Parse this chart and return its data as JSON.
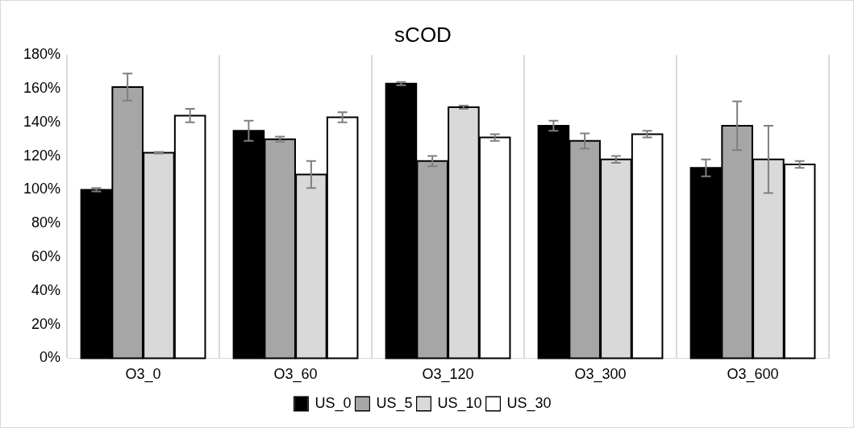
{
  "chart_data": {
    "type": "bar",
    "title": "sCOD",
    "categories": [
      "O3_0",
      "O3_60",
      "O3_120",
      "O3_300",
      "O3_600"
    ],
    "series": [
      {
        "name": "US_0",
        "color": "#000000",
        "values": [
          100,
          135,
          163,
          138,
          113
        ],
        "errors": [
          1,
          6,
          1,
          3,
          5
        ]
      },
      {
        "name": "US_5",
        "color": "#a6a6a6",
        "values": [
          161,
          130,
          117,
          129,
          138
        ],
        "errors": [
          8,
          1.5,
          3,
          4.5,
          14.5
        ]
      },
      {
        "name": "US_10",
        "color": "#d9d9d9",
        "values": [
          122,
          109,
          149,
          118,
          118
        ],
        "errors": [
          0.5,
          8,
          1,
          2,
          20
        ]
      },
      {
        "name": "US_30",
        "color": "#ffffff",
        "values": [
          144,
          143,
          131,
          133,
          115
        ],
        "errors": [
          4,
          3,
          2,
          2,
          2
        ]
      }
    ],
    "ylim": [
      0,
      180
    ],
    "yticks": [
      {
        "value": 0,
        "label": "0%"
      },
      {
        "value": 20,
        "label": "20%"
      },
      {
        "value": 40,
        "label": "40%"
      },
      {
        "value": 60,
        "label": "60%"
      },
      {
        "value": 80,
        "label": "80%"
      },
      {
        "value": 100,
        "label": "100%"
      },
      {
        "value": 120,
        "label": "120%"
      },
      {
        "value": 140,
        "label": "140%"
      },
      {
        "value": 160,
        "label": "160%"
      },
      {
        "value": 180,
        "label": "180%"
      }
    ],
    "grid": "x",
    "legend": "bottom"
  }
}
